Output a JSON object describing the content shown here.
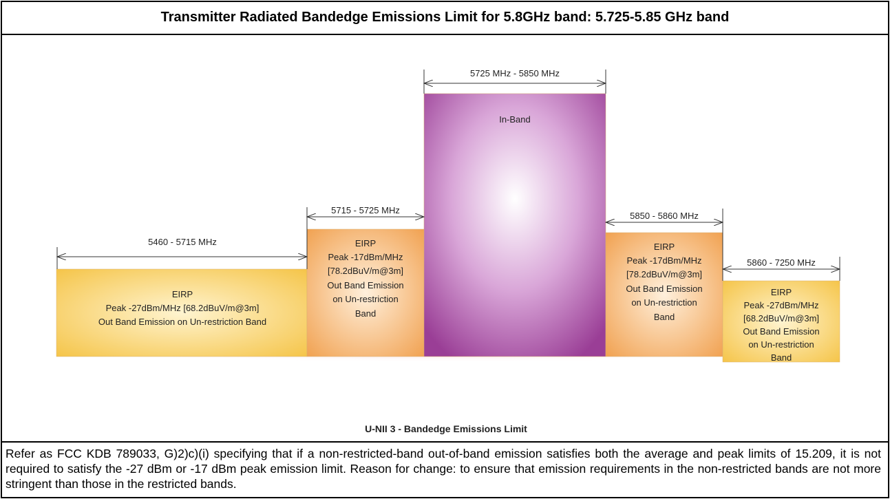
{
  "title": "Transmitter Radiated Bandedge Emissions Limit for 5.8GHz band: 5.725-5.85 GHz band",
  "bands": [
    {
      "range": "5460 - 5715 MHz",
      "lines": [
        "EIRP",
        "Peak -27dBm/MHz [68.2dBuV/m@3m]",
        "Out Band Emission on Un-restriction Band"
      ]
    },
    {
      "range": "5715 - 5725 MHz",
      "lines": [
        "EIRP",
        "Peak -17dBm/MHz",
        "[78.2dBuV/m@3m]",
        "Out Band Emission",
        "on Un-restriction",
        "Band"
      ]
    },
    {
      "range": "5725 MHz - 5850 MHz",
      "lines": [
        "In-Band"
      ]
    },
    {
      "range": "5850 - 5860 MHz",
      "lines": [
        "EIRP",
        "Peak -17dBm/MHz",
        "[78.2dBuV/m@3m]",
        "Out Band Emission",
        "on Un-restriction",
        "Band"
      ]
    },
    {
      "range": "5860 - 7250 MHz",
      "lines": [
        "EIRP",
        "Peak -27dBm/MHz",
        "[68.2dBuV/m@3m]",
        "Out Band Emission",
        "on Un-restriction",
        "Band"
      ]
    }
  ],
  "footer_label": "U-NII 3 - Bandedge Emissions Limit",
  "note": "Refer as FCC KDB 789033, G)2)c)(i) specifying that if a non-restricted-band out-of-band emission satisfies both the average and peak limits of 15.209, it is not required to satisfy the -27 dBm or -17 dBm peak emission limit. Reason for change: to ensure that emission requirements in the non-restricted bands are not more stringent than those in the restricted bands."
}
